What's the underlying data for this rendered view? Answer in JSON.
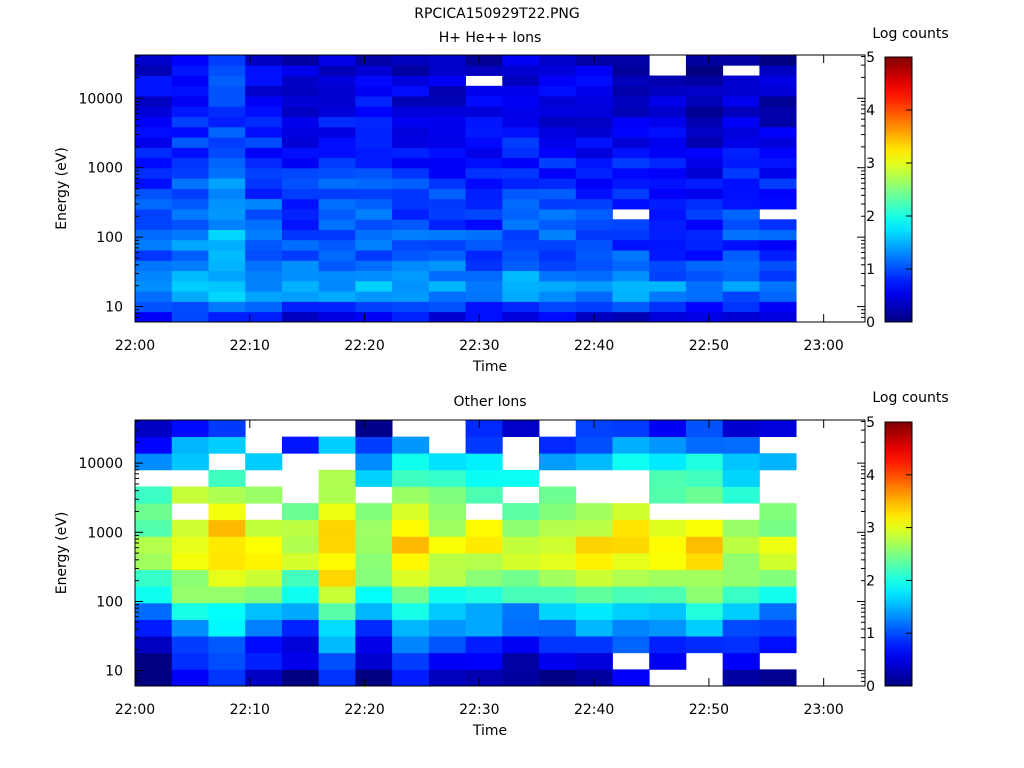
{
  "figure": {
    "title": "RPCICA150929T22.PNG"
  },
  "chart_data": [
    {
      "type": "heatmap",
      "title": "H+ He++ Ions",
      "xlabel": "Time",
      "ylabel": "Energy (eV)",
      "colorbar_label": "Log counts",
      "colorbar_ticks": [
        "0",
        "1",
        "2",
        "3",
        "4",
        "5"
      ],
      "zlim": [
        0,
        5
      ],
      "x_ticks": [
        "22:00",
        "22:10",
        "22:20",
        "22:30",
        "22:40",
        "22:50",
        "23:00"
      ],
      "y_ticks": [
        "10",
        "100",
        "1000",
        "10000"
      ],
      "yscale": "log",
      "ylim": [
        6,
        42000
      ],
      "time_bins": 19,
      "time_start": "22:00",
      "time_step_min": 3.2,
      "profile_z": [
        0.6,
        1.0,
        1.35,
        1.45,
        1.3,
        1.2,
        1.1,
        1.05,
        1.1,
        1.0,
        1.05,
        1.0,
        0.95,
        0.9,
        0.85,
        0.8,
        0.75,
        0.7,
        0.65,
        0.6,
        0.6,
        0.55,
        0.5,
        0.5,
        0.45,
        0.4
      ],
      "column_offsets": [
        0.0,
        0.15,
        0.35,
        0.05,
        -0.05,
        0.05,
        0.0,
        -0.05,
        -0.05,
        -0.1,
        0.0,
        -0.05,
        -0.05,
        -0.1,
        -0.15,
        -0.25,
        -0.15,
        -0.2,
        null
      ],
      "blank_cells": [
        [
          1,
          26
        ],
        [
          2,
          28
        ],
        [
          2,
          29
        ],
        [
          9,
          23
        ],
        [
          13,
          26
        ],
        [
          13,
          10
        ],
        [
          14,
          25
        ],
        [
          14,
          24
        ],
        [
          16,
          24
        ],
        [
          16,
          28
        ],
        [
          17,
          10
        ],
        [
          18,
          10
        ]
      ],
      "colorscale": "jet"
    },
    {
      "type": "heatmap",
      "title": "Other Ions",
      "xlabel": "Time",
      "ylabel": "Energy (eV)",
      "colorbar_label": "Log counts",
      "colorbar_ticks": [
        "0",
        "1",
        "2",
        "3",
        "4",
        "5"
      ],
      "zlim": [
        0,
        5
      ],
      "x_ticks": [
        "22:00",
        "22:10",
        "22:20",
        "22:30",
        "22:40",
        "22:50",
        "23:00"
      ],
      "y_ticks": [
        "10",
        "100",
        "1000",
        "10000"
      ],
      "yscale": "log",
      "ylim": [
        6,
        42000
      ],
      "time_bins": 19,
      "time_start": "22:00",
      "time_step_min": 3.2,
      "profile_z": [
        0.3,
        0.5,
        0.8,
        1.2,
        1.6,
        2.2,
        2.6,
        2.9,
        3.0,
        2.9,
        2.7,
        2.4,
        2.0,
        1.6,
        1.1,
        0.6
      ],
      "column_offsets": [
        -0.4,
        0.2,
        0.4,
        0.1,
        -0.2,
        0.5,
        -0.3,
        0.4,
        0.0,
        0.0,
        -0.2,
        -0.1,
        0.1,
        0.2,
        0.1,
        0.2,
        -0.1,
        -0.2,
        null
      ],
      "blank_cells": [
        [
          13,
          1
        ],
        [
          14,
          0
        ],
        [
          15,
          0
        ],
        [
          15,
          1
        ],
        [
          17,
          1
        ]
      ],
      "colorscale": "jet"
    }
  ]
}
